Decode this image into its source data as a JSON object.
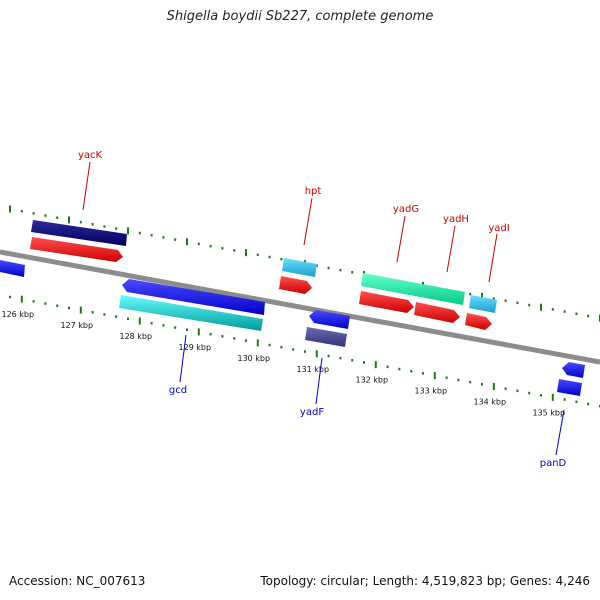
{
  "title": "Shigella boydii Sb227, complete genome",
  "footer": {
    "accession": "Accession: NC_007613",
    "summary": "Topology: circular; Length: 4,519,823 bp; Genes: 4,246"
  },
  "colors": {
    "backbone": "#8c8c8c",
    "ticks": "#1a7a1a",
    "label_top": "#cc0000",
    "label_bottom": "#0000cc"
  },
  "ticks": [
    "126 kbp",
    "127 kbp",
    "128 kbp",
    "129 kbp",
    "130 kbp",
    "131 kbp",
    "132 kbp",
    "133 kbp",
    "134 kbp",
    "135 kbp"
  ],
  "genes": [
    {
      "label": "yacK",
      "side": "top"
    },
    {
      "label": "hpt",
      "side": "top"
    },
    {
      "label": "yadG",
      "side": "top"
    },
    {
      "label": "yadH",
      "side": "top"
    },
    {
      "label": "yadI",
      "side": "top"
    },
    {
      "label": "gcd",
      "side": "bottom"
    },
    {
      "label": "yadF",
      "side": "bottom"
    },
    {
      "label": "panD",
      "side": "bottom"
    }
  ]
}
